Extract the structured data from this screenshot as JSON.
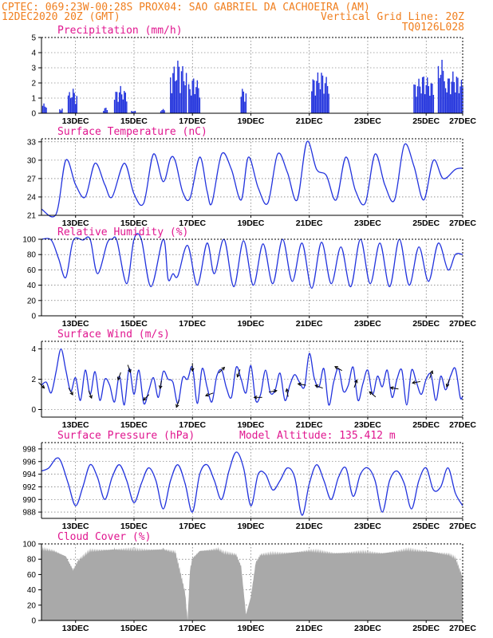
{
  "header": {
    "line1_left": "CPTEC:   069:23W-00:28S   PROX04: SAO GABRIEL DA CACHOEIRA (AM)",
    "line2_left": "12DEC2020 20Z (GMT)",
    "line2_right": "Vertical Grid Line: 20Z",
    "line3_right": "TQ0126L028"
  },
  "colors": {
    "header": "#f07f1f",
    "title": "#e0168f",
    "series": "#2233dd",
    "cloud": "#a9a9a9",
    "grid": "#555555"
  },
  "chart_data": [
    {
      "type": "bar",
      "title": "Precipitation (mm/h)",
      "ylim": [
        0,
        5
      ],
      "yticks": [
        0,
        1,
        2,
        3,
        4,
        5
      ],
      "xlim": [
        0,
        346
      ],
      "x_tick_hours": [
        28,
        76,
        124,
        172,
        220,
        268,
        316,
        364
      ],
      "x_tick_labels": [
        "13DEC",
        "15DEC",
        "17DEC",
        "19DEC",
        "21DEC",
        "23DEC",
        "25DEC",
        "27DEC"
      ],
      "rain_events": [
        {
          "start": 1,
          "end": 4,
          "peak": 0.7
        },
        {
          "start": 15,
          "end": 17,
          "peak": 0.4
        },
        {
          "start": 22,
          "end": 29,
          "peak": 1.7
        },
        {
          "start": 51,
          "end": 54,
          "peak": 0.4
        },
        {
          "start": 60,
          "end": 70,
          "peak": 1.8
        },
        {
          "start": 74,
          "end": 77,
          "peak": 0.2
        },
        {
          "start": 98,
          "end": 101,
          "peak": 0.3
        },
        {
          "start": 106,
          "end": 119,
          "peak": 3.6
        },
        {
          "start": 121,
          "end": 130,
          "peak": 2.5
        },
        {
          "start": 164,
          "end": 168,
          "peak": 1.8
        },
        {
          "start": 222,
          "end": 236,
          "peak": 2.9
        },
        {
          "start": 306,
          "end": 322,
          "peak": 2.6
        },
        {
          "start": 326,
          "end": 330,
          "peak": 4.0
        },
        {
          "start": 331,
          "end": 346,
          "peak": 2.8
        }
      ]
    },
    {
      "type": "line",
      "title": "Surface Temperature (nC)",
      "ylim": [
        21,
        33.5
      ],
      "yticks": [
        21,
        24,
        27,
        30,
        33
      ],
      "x_hours": [
        0,
        12,
        20,
        28,
        36,
        44,
        52,
        58,
        68,
        76,
        84,
        92,
        100,
        106,
        110,
        116,
        122,
        130,
        136,
        140,
        148,
        156,
        164,
        170,
        178,
        186,
        194,
        202,
        210,
        218,
        226,
        234,
        242,
        250,
        258,
        266,
        274,
        282,
        290,
        298,
        306,
        314,
        322,
        330,
        340,
        346
      ],
      "values": [
        22.0,
        21.2,
        30.0,
        26.0,
        24.0,
        29.5,
        26.0,
        24.0,
        29.5,
        24.5,
        23.0,
        31.0,
        26.5,
        30.3,
        29.8,
        24.8,
        23.8,
        30.5,
        25.0,
        23.0,
        31.0,
        28.5,
        23.5,
        30.5,
        25.5,
        23.0,
        31.0,
        28.0,
        23.5,
        33.0,
        28.5,
        27.5,
        23.5,
        30.5,
        25.0,
        23.0,
        31.0,
        26.0,
        23.5,
        32.5,
        29.0,
        23.5,
        30.0,
        27.0,
        28.5,
        28.7
      ]
    },
    {
      "type": "line",
      "title": "Relative Humidity (%)",
      "ylim": [
        0,
        100
      ],
      "yticks": [
        0,
        20,
        40,
        60,
        80,
        100
      ],
      "x_hours": [
        0,
        8,
        14,
        20,
        26,
        34,
        40,
        46,
        54,
        58,
        62,
        70,
        76,
        82,
        90,
        100,
        104,
        108,
        112,
        120,
        128,
        136,
        142,
        150,
        158,
        166,
        174,
        182,
        190,
        198,
        206,
        214,
        222,
        230,
        238,
        246,
        254,
        262,
        270,
        278,
        286,
        294,
        302,
        310,
        318,
        326,
        334,
        340,
        346
      ],
      "values": [
        100,
        99,
        75,
        50,
        98,
        99,
        100,
        55,
        95,
        100,
        98,
        42,
        100,
        100,
        38,
        100,
        48,
        55,
        52,
        92,
        40,
        95,
        55,
        100,
        38,
        98,
        40,
        94,
        42,
        100,
        45,
        95,
        36,
        96,
        42,
        90,
        38,
        100,
        42,
        95,
        38,
        100,
        40,
        90,
        45,
        95,
        60,
        80,
        80
      ]
    },
    {
      "type": "line",
      "title": "Surface Wind (m/s)",
      "ylim": [
        -0.5,
        4.5
      ],
      "yticks": [
        0,
        2,
        4
      ],
      "x_hours": [
        0,
        4,
        8,
        12,
        16,
        20,
        24,
        28,
        32,
        36,
        40,
        44,
        48,
        52,
        56,
        60,
        64,
        68,
        72,
        76,
        80,
        84,
        88,
        92,
        96,
        100,
        104,
        108,
        112,
        116,
        120,
        124,
        128,
        132,
        136,
        140,
        144,
        148,
        152,
        156,
        160,
        164,
        168,
        172,
        176,
        180,
        184,
        188,
        192,
        196,
        200,
        204,
        208,
        212,
        216,
        220,
        224,
        228,
        232,
        236,
        240,
        244,
        248,
        252,
        256,
        260,
        264,
        268,
        272,
        276,
        280,
        284,
        288,
        292,
        296,
        300,
        304,
        308,
        312,
        316,
        320,
        324,
        328,
        332,
        336,
        340,
        344,
        346
      ],
      "values": [
        1.6,
        1.8,
        1.1,
        2.5,
        4.0,
        2.6,
        1.2,
        2.1,
        0.6,
        2.6,
        1.0,
        2.5,
        0.6,
        2.0,
        1.6,
        0.5,
        2.2,
        0.3,
        2.7,
        1.0,
        2.6,
        0.4,
        1.2,
        2.1,
        0.8,
        2.5,
        2.0,
        1.8,
        0.4,
        2.1,
        2.0,
        2.8,
        0.4,
        2.7,
        1.5,
        0.5,
        2.2,
        2.6,
        1.4,
        0.8,
        2.8,
        2.0,
        1.1,
        2.9,
        0.6,
        1.0,
        2.6,
        1.1,
        1.3,
        2.4,
        0.6,
        1.6,
        2.3,
        1.8,
        1.5,
        3.7,
        2.1,
        1.5,
        2.7,
        0.3,
        1.8,
        2.7,
        1.2,
        1.6,
        2.8,
        0.6,
        1.7,
        2.6,
        1.0,
        2.2,
        1.5,
        2.6,
        0.8,
        2.0,
        2.6,
        0.3,
        2.6,
        1.8,
        1.0,
        2.0,
        2.3,
        0.6,
        2.2,
        1.3,
        2.2,
        2.7,
        0.8,
        0.9
      ],
      "wind_arrows": [
        {
          "hour": 0,
          "dir_deg": 135
        },
        {
          "hour": 24,
          "dir_deg": 150
        },
        {
          "hour": 40,
          "dir_deg": 160
        },
        {
          "hour": 64,
          "dir_deg": 200
        },
        {
          "hour": 72,
          "dir_deg": 160
        },
        {
          "hour": 86,
          "dir_deg": 225
        },
        {
          "hour": 98,
          "dir_deg": 190
        },
        {
          "hour": 112,
          "dir_deg": 200
        },
        {
          "hour": 124,
          "dir_deg": 180
        },
        {
          "hour": 138,
          "dir_deg": 250
        },
        {
          "hour": 148,
          "dir_deg": 45
        },
        {
          "hour": 162,
          "dir_deg": 200
        },
        {
          "hour": 178,
          "dir_deg": 270
        },
        {
          "hour": 190,
          "dir_deg": 80
        },
        {
          "hour": 202,
          "dir_deg": 350
        },
        {
          "hour": 214,
          "dir_deg": 280
        },
        {
          "hour": 228,
          "dir_deg": 290
        },
        {
          "hour": 244,
          "dir_deg": 300
        },
        {
          "hour": 258,
          "dir_deg": 20
        },
        {
          "hour": 272,
          "dir_deg": 310
        },
        {
          "hour": 290,
          "dir_deg": 280
        },
        {
          "hour": 308,
          "dir_deg": 260
        },
        {
          "hour": 320,
          "dir_deg": 20
        },
        {
          "hour": 334,
          "dir_deg": 200
        }
      ]
    },
    {
      "type": "line",
      "title": "Surface Pressure (hPa)",
      "annotation": "Model Altitude: 135.412 m",
      "ylim": [
        987,
        999
      ],
      "yticks": [
        988,
        990,
        992,
        994,
        996,
        998
      ],
      "x_hours": [
        0,
        6,
        12,
        16,
        22,
        28,
        34,
        40,
        46,
        52,
        58,
        64,
        70,
        76,
        82,
        88,
        94,
        100,
        106,
        112,
        118,
        124,
        130,
        136,
        142,
        148,
        154,
        160,
        166,
        172,
        178,
        184,
        190,
        196,
        202,
        208,
        214,
        220,
        226,
        232,
        238,
        244,
        250,
        256,
        262,
        268,
        274,
        280,
        286,
        292,
        298,
        304,
        310,
        316,
        322,
        328,
        334,
        340,
        346
      ],
      "values": [
        994.5,
        995.0,
        996.5,
        996.0,
        992.5,
        989.0,
        992.0,
        995.5,
        993.5,
        990.0,
        993.5,
        995.5,
        993.0,
        989.5,
        992.5,
        995.0,
        993.0,
        988.5,
        993.0,
        995.5,
        992.5,
        988.0,
        994.0,
        995.5,
        993.0,
        990.0,
        994.5,
        997.5,
        995.0,
        989.0,
        994.0,
        994.0,
        991.5,
        993.0,
        995.0,
        993.5,
        987.5,
        992.5,
        995.5,
        993.0,
        990.0,
        993.5,
        995.0,
        990.5,
        994.0,
        995.0,
        993.0,
        988.0,
        993.0,
        994.5,
        992.5,
        988.5,
        993.0,
        995.0,
        991.5,
        992.0,
        995.0,
        991.0,
        989.0
      ]
    },
    {
      "type": "area",
      "title": "Cloud Cover (%)",
      "ylim": [
        0,
        100
      ],
      "yticks": [
        0,
        20,
        40,
        60,
        80,
        100
      ],
      "x_hours": [
        0,
        10,
        20,
        26,
        30,
        40,
        60,
        80,
        100,
        110,
        115,
        118,
        120,
        122,
        124,
        130,
        145,
        150,
        160,
        164,
        168,
        172,
        176,
        180,
        200,
        220,
        240,
        260,
        280,
        300,
        320,
        335,
        340,
        346
      ],
      "values": [
        97,
        95,
        88,
        70,
        82,
        95,
        97,
        96,
        97,
        93,
        60,
        40,
        3,
        70,
        85,
        95,
        97,
        92,
        90,
        75,
        12,
        35,
        80,
        90,
        92,
        95,
        92,
        93,
        92,
        96,
        94,
        90,
        85,
        60
      ]
    }
  ]
}
